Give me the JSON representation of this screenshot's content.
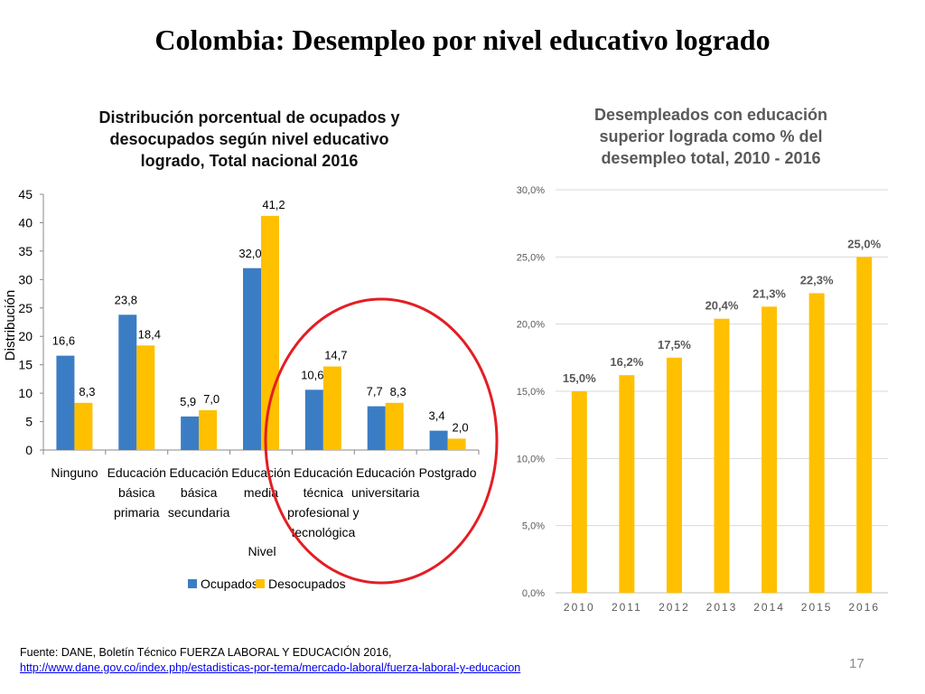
{
  "slide": {
    "title": "Colombia: Desempleo por nivel educativo logrado",
    "page_number": "17"
  },
  "source": {
    "text": "Fuente: DANE, Boletín Técnico FUERZA LABORAL Y EDUCACIÓN 2016,",
    "url": "http://www.dane.gov.co/index.php/estadisticas-por-tema/mercado-laboral/fuerza-laboral-y-educacion"
  },
  "colors": {
    "ocupados": "#3b7dc4",
    "desocupados": "#ffc000",
    "highlight_circle": "#e31e24",
    "right_bar": "#ffc000"
  },
  "chart_data": [
    {
      "type": "bar",
      "title_lines": [
        "Distribución porcentual de ocupados y",
        "desocupados según nivel educativo",
        "logrado, Total nacional 2016"
      ],
      "xlabel": "Nivel",
      "ylabel": "Distribución",
      "ylim": [
        0,
        45
      ],
      "yticks": [
        0,
        5,
        10,
        15,
        20,
        25,
        30,
        35,
        40,
        45
      ],
      "categories": [
        [
          "Ninguno"
        ],
        [
          "Educación",
          "básica",
          "primaria"
        ],
        [
          "Educación",
          "básica",
          "secundaria"
        ],
        [
          "Educación",
          "media"
        ],
        [
          "Educación",
          "técnica",
          "profesional y",
          "tecnológica"
        ],
        [
          "Educación",
          "universitaria"
        ],
        [
          "Postgrado"
        ]
      ],
      "series": [
        {
          "name": "Ocupados",
          "values": [
            16.6,
            23.8,
            5.9,
            32.0,
            10.6,
            7.7,
            3.4
          ],
          "labels": [
            "16,6",
            "23,8",
            "5,9",
            "32,0",
            "10,6",
            "7,7",
            "3,4"
          ]
        },
        {
          "name": "Desocupados",
          "values": [
            8.3,
            18.4,
            7.0,
            41.2,
            14.7,
            8.3,
            2.0
          ],
          "labels": [
            "8,3",
            "18,4",
            "7,0",
            "41,2",
            "14,7",
            "8,3",
            "2,0"
          ]
        }
      ],
      "legend": "bottom",
      "grid": false
    },
    {
      "type": "bar",
      "title_lines": [
        "Desempleados con educación",
        "superior lograda como % del",
        "desempleo total, 2010 - 2016"
      ],
      "categories": [
        "2010",
        "2011",
        "2012",
        "2013",
        "2014",
        "2015",
        "2016"
      ],
      "values": [
        15.0,
        16.2,
        17.5,
        20.4,
        21.3,
        22.3,
        25.0
      ],
      "labels": [
        "15,0%",
        "16,2%",
        "17,5%",
        "20,4%",
        "21,3%",
        "22,3%",
        "25,0%"
      ],
      "ylim": [
        0,
        30
      ],
      "yticks": [
        0,
        5,
        10,
        15,
        20,
        25,
        30
      ],
      "yticklabels": [
        "0,0%",
        "5,0%",
        "10,0%",
        "15,0%",
        "20,0%",
        "25,0%",
        "30,0%"
      ],
      "grid": true
    }
  ]
}
